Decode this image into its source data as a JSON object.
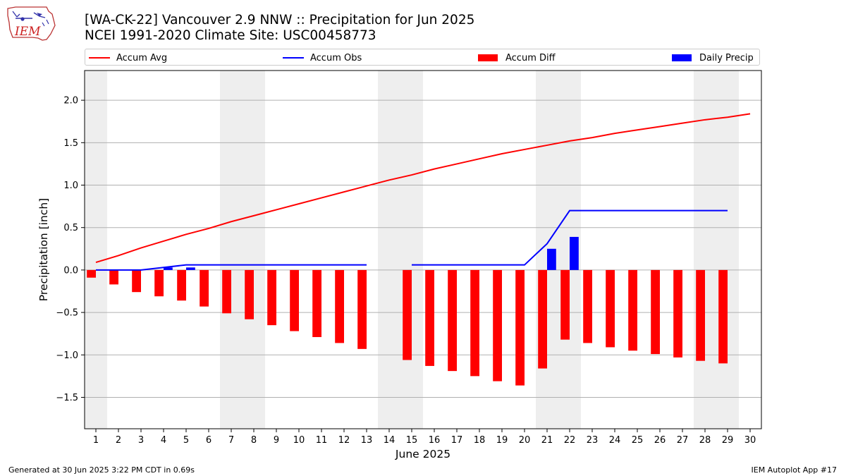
{
  "title_line1": "[WA-CK-22] Vancouver 2.9 NNW :: Precipitation for Jun 2025",
  "title_line2": "NCEI 1991-2020 Climate Site: USC00458773",
  "logo": {
    "text": "IEM",
    "icon": "iem-iowa-logo-icon"
  },
  "legend": [
    {
      "label": "Accum Avg",
      "kind": "line",
      "color": "#ff0000"
    },
    {
      "label": "Accum Obs",
      "kind": "line",
      "color": "#0000ff"
    },
    {
      "label": "Accum Diff",
      "kind": "bar",
      "color": "#ff0000"
    },
    {
      "label": "Daily Precip",
      "kind": "bar",
      "color": "#0000ff"
    }
  ],
  "footer_left": "Generated at 30 Jun 2025 3:22 PM CDT in 0.69s",
  "footer_right": "IEM Autoplot App #17",
  "chart_data": {
    "type": "bar",
    "xlabel": "June 2025",
    "ylabel": "Precipitation [inch]",
    "xlim": [
      0.5,
      30.5
    ],
    "ylim": [
      -1.87,
      2.35
    ],
    "x_ticks": [
      1,
      2,
      3,
      4,
      5,
      6,
      7,
      8,
      9,
      10,
      11,
      12,
      13,
      14,
      15,
      16,
      17,
      18,
      19,
      20,
      21,
      22,
      23,
      24,
      25,
      26,
      27,
      28,
      29,
      30
    ],
    "y_ticks": [
      -1.5,
      -1.0,
      -0.5,
      0.0,
      0.5,
      1.0,
      1.5,
      2.0
    ],
    "y_tick_labels": [
      "−1.5",
      "−1.0",
      "−0.5",
      "0.0",
      "0.5",
      "1.0",
      "1.5",
      "2.0"
    ],
    "grid": "horizontal",
    "weekend_shading": [
      [
        0.5,
        1.5
      ],
      [
        6.5,
        8.5
      ],
      [
        13.5,
        15.5
      ],
      [
        20.5,
        22.5
      ],
      [
        27.5,
        29.5
      ]
    ],
    "shading_color": "#eeeeee",
    "series": [
      {
        "name": "Accum Avg",
        "kind": "line",
        "color": "#ff0000",
        "x": [
          1,
          2,
          3,
          4,
          5,
          6,
          7,
          8,
          9,
          10,
          11,
          12,
          13,
          14,
          15,
          16,
          17,
          18,
          19,
          20,
          21,
          22,
          23,
          24,
          25,
          26,
          27,
          28,
          29,
          30
        ],
        "y": [
          0.09,
          0.17,
          0.26,
          0.34,
          0.42,
          0.49,
          0.57,
          0.64,
          0.71,
          0.78,
          0.85,
          0.92,
          0.99,
          1.06,
          1.12,
          1.19,
          1.25,
          1.31,
          1.37,
          1.42,
          1.47,
          1.52,
          1.56,
          1.61,
          1.65,
          1.69,
          1.73,
          1.77,
          1.8,
          1.84
        ]
      },
      {
        "name": "Accum Obs",
        "kind": "line",
        "color": "#0000ff",
        "x": [
          1,
          2,
          3,
          4,
          5,
          6,
          7,
          8,
          9,
          10,
          11,
          12,
          13,
          15,
          16,
          17,
          18,
          19,
          20,
          21,
          22,
          23,
          24,
          25,
          26,
          27,
          28,
          29
        ],
        "y": [
          0.0,
          0.0,
          0.0,
          0.03,
          0.06,
          0.06,
          0.06,
          0.06,
          0.06,
          0.06,
          0.06,
          0.06,
          0.06,
          0.06,
          0.06,
          0.06,
          0.06,
          0.06,
          0.06,
          0.31,
          0.7,
          0.7,
          0.7,
          0.7,
          0.7,
          0.7,
          0.7,
          0.7
        ],
        "segments": [
          [
            1,
            13
          ],
          [
            15,
            29
          ]
        ]
      },
      {
        "name": "Accum Diff",
        "kind": "bar",
        "color": "#ff0000",
        "x": [
          1,
          2,
          3,
          4,
          5,
          6,
          7,
          8,
          9,
          10,
          11,
          12,
          13,
          15,
          16,
          17,
          18,
          19,
          20,
          21,
          22,
          23,
          24,
          25,
          26,
          27,
          28,
          29
        ],
        "y": [
          -0.09,
          -0.17,
          -0.26,
          -0.31,
          -0.36,
          -0.43,
          -0.51,
          -0.58,
          -0.65,
          -0.72,
          -0.79,
          -0.86,
          -0.93,
          -1.06,
          -1.13,
          -1.19,
          -1.25,
          -1.31,
          -1.36,
          -1.16,
          -0.82,
          -0.86,
          -0.91,
          -0.95,
          -0.99,
          -1.03,
          -1.07,
          -1.1
        ]
      },
      {
        "name": "Daily Precip",
        "kind": "bar",
        "color": "#0000ff",
        "x": [
          4,
          5,
          21,
          22
        ],
        "y": [
          0.03,
          0.03,
          0.25,
          0.39
        ]
      }
    ]
  }
}
